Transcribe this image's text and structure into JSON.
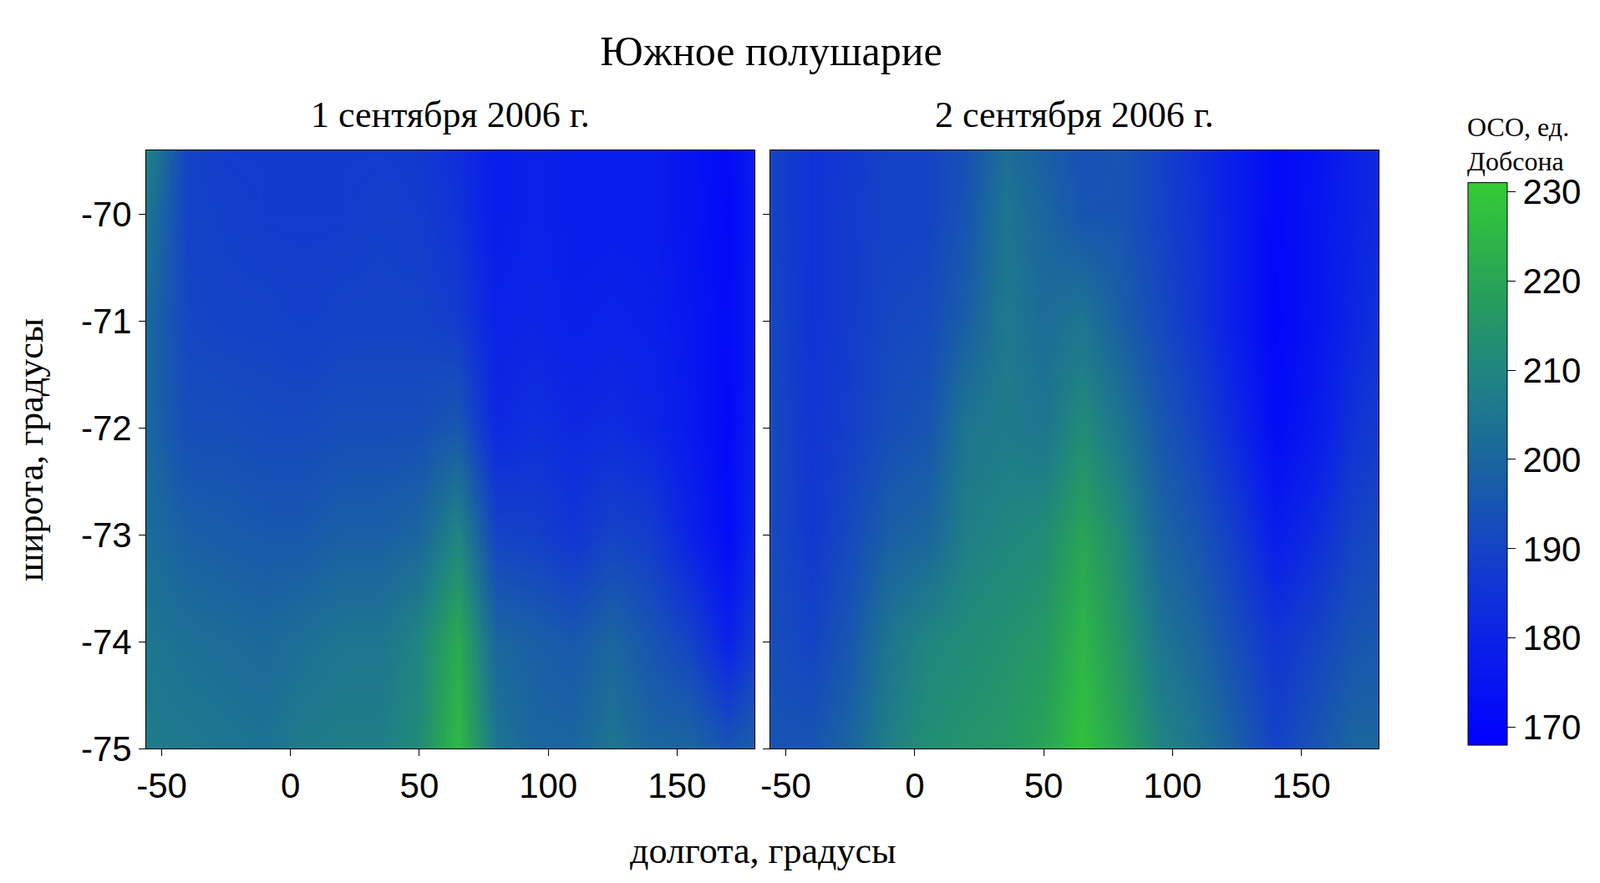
{
  "chart_data": {
    "type": "heatmap",
    "title": "Южное полушарие",
    "x_label": "долгота, градусы",
    "y_label": "широта, градусы",
    "x": [
      -55,
      -40,
      -25,
      -10,
      5,
      20,
      35,
      50,
      65,
      80,
      95,
      110,
      125,
      140,
      155,
      170,
      180
    ],
    "y": [
      -69.4,
      -70,
      -71,
      -72,
      -73,
      -74,
      -75
    ],
    "xlim": [
      -56,
      180
    ],
    "xticks": [
      -50,
      0,
      50,
      100,
      150
    ],
    "ylim": [
      -75,
      -69.4
    ],
    "yticks": [
      -75,
      -74,
      -73,
      -72,
      -71,
      -70
    ],
    "panels": [
      {
        "title": "1 сентября 2006 г.",
        "z": [
          [
            208,
            190,
            188,
            188,
            188,
            188,
            188,
            187,
            184,
            178,
            180,
            178,
            178,
            178,
            175,
            172,
            178
          ],
          [
            204,
            190,
            189,
            188,
            188,
            188,
            189,
            188,
            185,
            178,
            180,
            178,
            178,
            178,
            175,
            171,
            178
          ],
          [
            200,
            191,
            190,
            190,
            189,
            190,
            190,
            190,
            188,
            180,
            181,
            179,
            180,
            179,
            176,
            172,
            178
          ],
          [
            200,
            193,
            193,
            192,
            192,
            193,
            193,
            193,
            196,
            182,
            184,
            182,
            183,
            181,
            177,
            171,
            180
          ],
          [
            202,
            198,
            197,
            196,
            196,
            198,
            198,
            200,
            210,
            190,
            189,
            186,
            190,
            188,
            180,
            172,
            182
          ],
          [
            205,
            203,
            202,
            201,
            203,
            205,
            205,
            210,
            222,
            200,
            198,
            196,
            200,
            195,
            190,
            180,
            188
          ],
          [
            207,
            206,
            205,
            204,
            207,
            208,
            208,
            212,
            226,
            205,
            200,
            200,
            205,
            200,
            200,
            195,
            198
          ]
        ]
      },
      {
        "title": "2 сентября 2006 г.",
        "z": [
          [
            190,
            185,
            187,
            190,
            190,
            194,
            203,
            198,
            194,
            195,
            190,
            184,
            178,
            172,
            174,
            180,
            182
          ],
          [
            190,
            185,
            188,
            190,
            190,
            195,
            205,
            200,
            195,
            195,
            190,
            185,
            178,
            171,
            175,
            180,
            183
          ],
          [
            191,
            185,
            188,
            191,
            192,
            198,
            206,
            202,
            205,
            198,
            192,
            186,
            178,
            170,
            175,
            181,
            185
          ],
          [
            192,
            186,
            189,
            193,
            195,
            205,
            207,
            205,
            212,
            205,
            196,
            190,
            182,
            172,
            177,
            185,
            188
          ],
          [
            192,
            187,
            192,
            198,
            200,
            208,
            210,
            212,
            220,
            212,
            200,
            195,
            188,
            178,
            183,
            190,
            192
          ],
          [
            193,
            190,
            196,
            205,
            210,
            212,
            214,
            216,
            225,
            216,
            205,
            200,
            193,
            186,
            190,
            195,
            196
          ],
          [
            195,
            195,
            200,
            208,
            213,
            215,
            216,
            220,
            228,
            220,
            210,
            205,
            198,
            190,
            195,
            200,
            200
          ]
        ]
      }
    ],
    "colorbar": {
      "title": "ОСО, ед. Добсона",
      "range": [
        168,
        231
      ],
      "ticks": [
        170,
        180,
        190,
        200,
        210,
        220,
        230
      ]
    }
  }
}
